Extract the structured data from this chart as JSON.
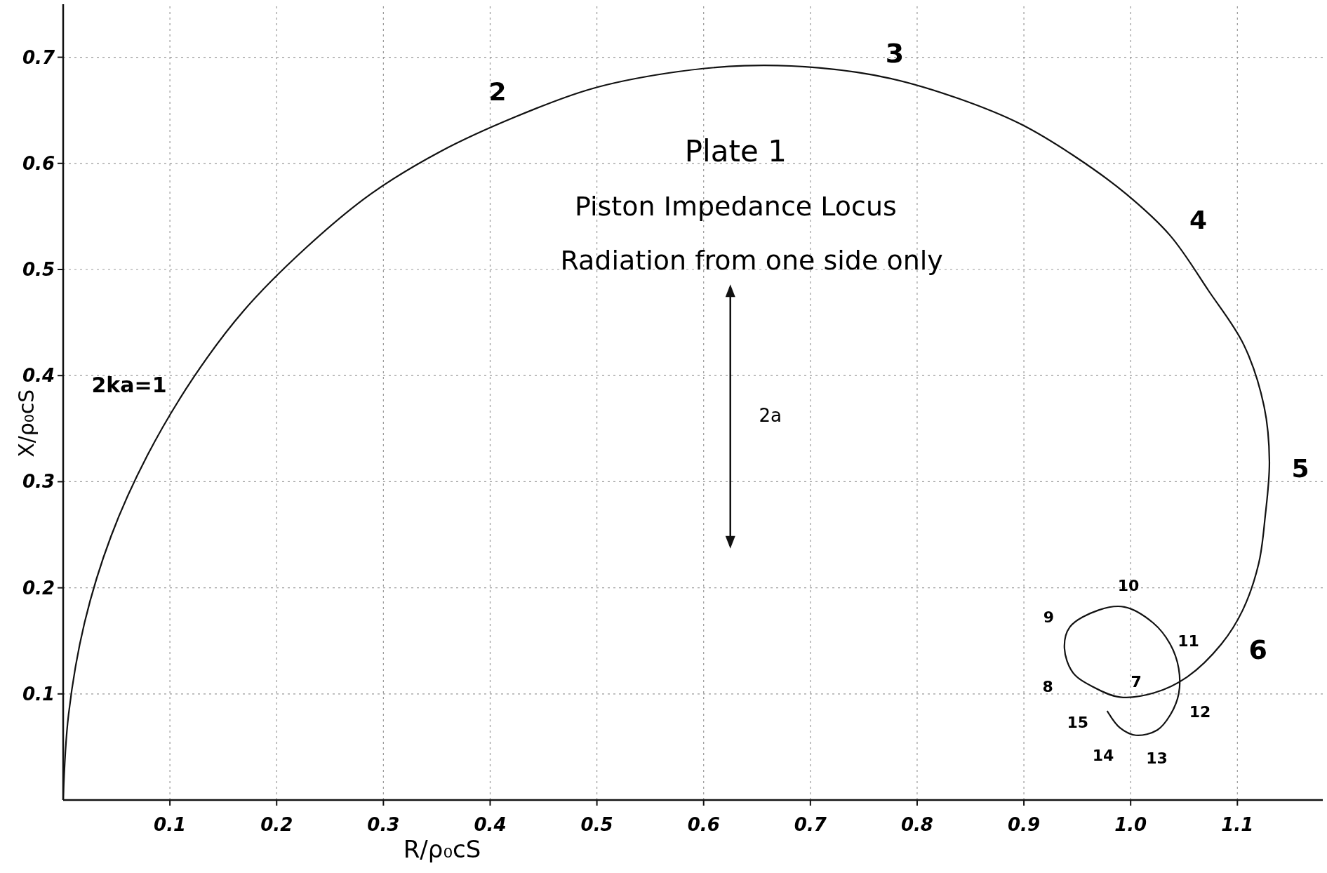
{
  "chart_data": {
    "type": "line",
    "title": "Plate 1",
    "subtitle": "Piston Impedance Locus",
    "xlabel": "R/ρ₀cS",
    "ylabel": "X/ρ₀cS",
    "xlim": [
      0,
      1.18
    ],
    "ylim": [
      0,
      0.75
    ],
    "xticks": [
      0.1,
      0.2,
      0.3,
      0.4,
      0.5,
      0.6,
      0.7,
      0.8,
      0.9,
      {
        "value": 1,
        "label": "1.0"
      },
      1.1
    ],
    "yticks": [
      0.1,
      0.2,
      0.3,
      0.4,
      0.5,
      0.6,
      0.7
    ],
    "grid": true,
    "marker": "none",
    "line_style": "solid",
    "series": [
      {
        "color": "#111111",
        "x": [
          0,
          0.005,
          0.02,
          0.045,
          0.079,
          0.122,
          0.169,
          0.227,
          0.288,
          0.353,
          0.424,
          0.494,
          0.566,
          0.638,
          0.708,
          0.775,
          0.839,
          0.897,
          0.95,
          0.996,
          1.037,
          1.073,
          1.106,
          1.125,
          1.13,
          1.126,
          1.12,
          1.105,
          1.085,
          1.053,
          1.022,
          0.99,
          0.966,
          0.946,
          0.938,
          0.943,
          0.97,
          0.994,
          1.021,
          1.037,
          1.045,
          1.045,
          1.037,
          1.025,
          1.005,
          0.99,
          0.978
        ],
        "values": [
          0,
          0.08,
          0.167,
          0.249,
          0.325,
          0.398,
          0.461,
          0.52,
          0.571,
          0.611,
          0.644,
          0.67,
          0.685,
          0.692,
          0.69,
          0.68,
          0.661,
          0.637,
          0.605,
          0.571,
          0.532,
          0.48,
          0.429,
          0.371,
          0.319,
          0.267,
          0.223,
          0.179,
          0.147,
          0.116,
          0.101,
          0.097,
          0.106,
          0.12,
          0.143,
          0.163,
          0.179,
          0.182,
          0.167,
          0.147,
          0.124,
          0.1,
          0.08,
          0.066,
          0.061,
          0.068,
          0.084
        ]
      }
    ],
    "annotations": [
      {
        "text": "2ka=1",
        "x": 0.122,
        "y": 0.398
      },
      {
        "text": "2",
        "x": 0.424,
        "y": 0.644
      },
      {
        "text": "3",
        "x": 0.775,
        "y": 0.68
      },
      {
        "text": "4",
        "x": 1.037,
        "y": 0.532
      },
      {
        "text": "5",
        "x": 1.13,
        "y": 0.319
      },
      {
        "text": "6",
        "x": 1.097,
        "y": 0.159
      },
      {
        "text": "7",
        "x": 1.002,
        "y": 0.096
      },
      {
        "text": "8",
        "x": 0.946,
        "y": 0.12
      },
      {
        "text": "9",
        "x": 0.943,
        "y": 0.163
      },
      {
        "text": "10",
        "x": 0.994,
        "y": 0.18
      },
      {
        "text": "11",
        "x": 1.037,
        "y": 0.147
      },
      {
        "text": "12",
        "x": 1.044,
        "y": 0.098
      },
      {
        "text": "13",
        "x": 1.018,
        "y": 0.066
      },
      {
        "text": "14",
        "x": 0.99,
        "y": 0.07
      },
      {
        "text": "15",
        "x": 0.978,
        "y": 0.084
      },
      "2a",
      "Radiation from one side only"
    ]
  }
}
